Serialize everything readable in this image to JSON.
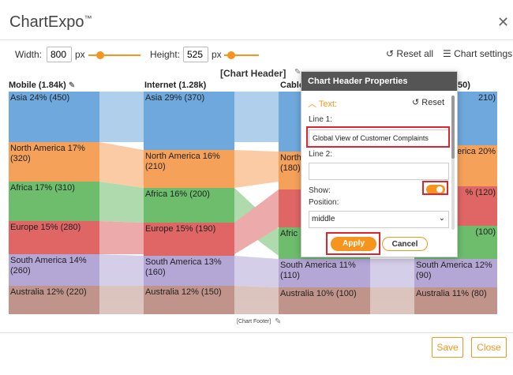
{
  "app": {
    "title": "ChartExpo",
    "tm": "™"
  },
  "controls": {
    "width_label": "Width:",
    "width_value": "800",
    "width_unit": "px",
    "height_label": "Height:",
    "height_value": "525",
    "height_unit": "px",
    "reset_all": "Reset all",
    "chart_settings": "Chart settings"
  },
  "chart": {
    "header": "[Chart Header]",
    "footer": "[Chart Footer]",
    "columns": [
      {
        "title": "Mobile (1.84k)"
      },
      {
        "title": "Internet (1.28k)"
      },
      {
        "title": "Cable"
      },
      {
        "title": "50)"
      }
    ],
    "mobile": [
      "Asia 24% (450)",
      "North America 17% (320)",
      "Africa 17% (310)",
      "Europe 15% (280)",
      "South America 14% (260)",
      "Australia 12% (220)"
    ],
    "internet": [
      "Asia 29% (370)",
      "North America 16% (210)",
      "Africa 16% (200)",
      "Europe 15% (190)",
      "South America 13% (160)",
      "Australia 12% (150)"
    ],
    "cable": [
      "North",
      "(180)",
      "Afric",
      "South America 11% (110)",
      "Australia 10% (100)"
    ],
    "last": [
      "210)",
      "America 20%",
      "% (120)",
      "(100)",
      "South America 12% (90)",
      "Australia 11% (80)"
    ],
    "colors": {
      "asia": "#6fa8dc",
      "namerica": "#f6a15a",
      "africa": "#6dbd6d",
      "europe": "#e06666",
      "samerica": "#b4a7d6",
      "australia": "#c0948a"
    }
  },
  "panel": {
    "title": "Chart Header Properties",
    "section": "Text:",
    "reset": "Reset",
    "line1_label": "Line 1:",
    "line1_value": "Global View of Customer Complaints",
    "line2_label": "Line 2:",
    "line2_value": "",
    "show_label": "Show:",
    "show_on": true,
    "position_label": "Position:",
    "position_value": "middle",
    "apply": "Apply",
    "cancel": "Cancel"
  },
  "footer": {
    "save": "Save",
    "close": "Close"
  }
}
